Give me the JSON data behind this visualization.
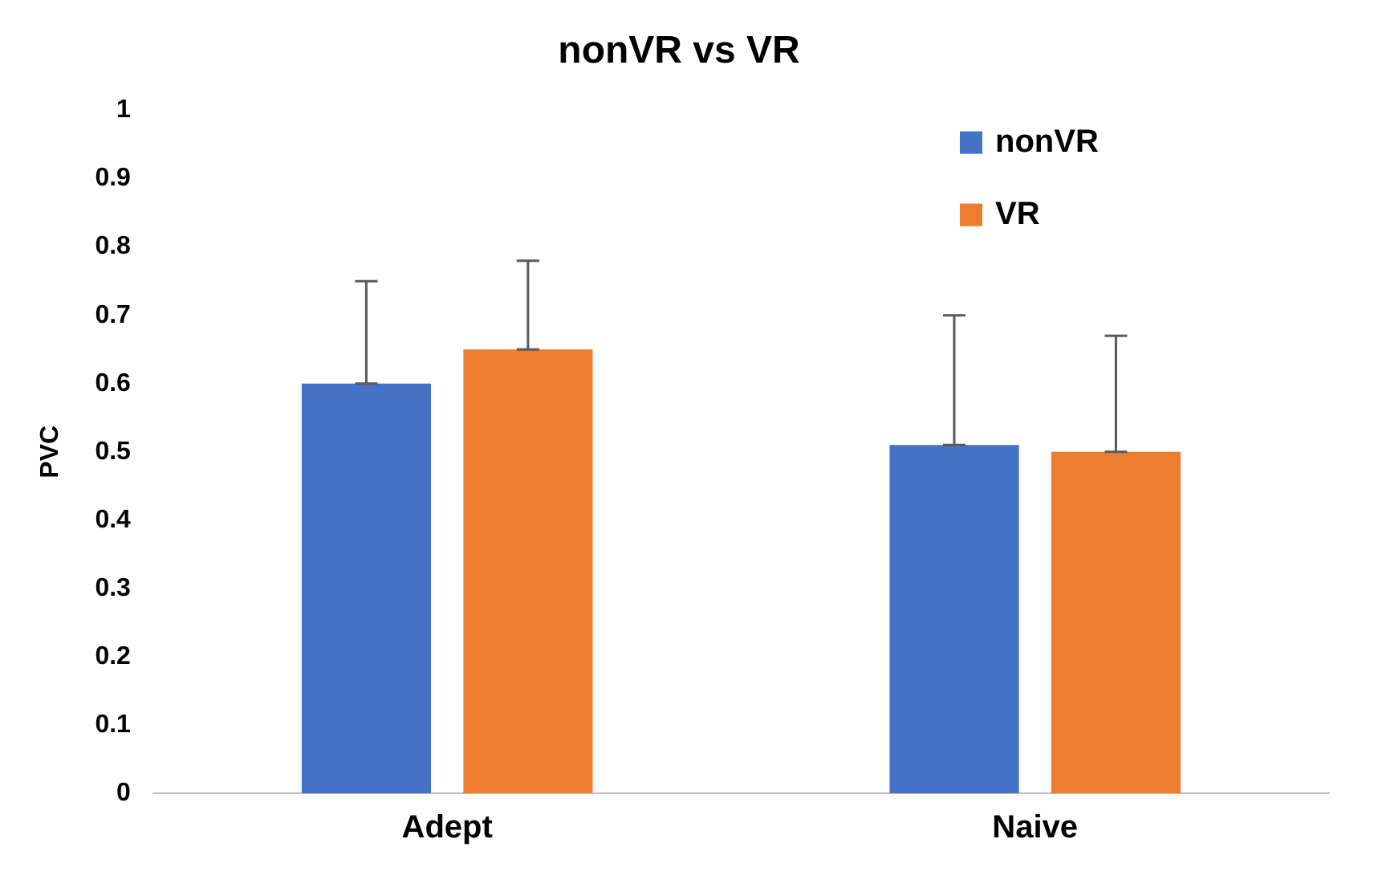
{
  "chart_data": {
    "type": "bar",
    "title": "nonVR vs VR",
    "ylabel": "PVC",
    "categories": [
      "Adept",
      "Naive"
    ],
    "series": [
      {
        "name": "nonVR",
        "color": "#4472c4",
        "values": [
          0.6,
          0.51
        ],
        "errors": [
          [
            0.6,
            0.75
          ],
          [
            0.51,
            0.7
          ]
        ]
      },
      {
        "name": "VR",
        "color": "#ed7d31",
        "values": [
          0.65,
          0.5
        ],
        "errors": [
          [
            0.65,
            0.78
          ],
          [
            0.5,
            0.67
          ]
        ]
      }
    ],
    "ylim": [
      0,
      1
    ],
    "yticks": [
      0,
      0.1,
      0.2,
      0.3,
      0.4,
      0.5,
      0.6,
      0.7,
      0.8,
      0.9,
      1
    ],
    "grid": false,
    "legend": "top right"
  }
}
